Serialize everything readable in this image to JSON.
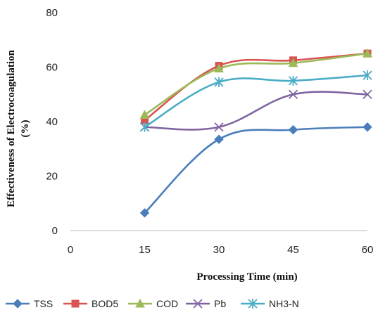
{
  "chart_data": {
    "type": "line",
    "x": [
      15,
      30,
      45,
      60
    ],
    "series": [
      {
        "name": "TSS",
        "values": [
          6.5,
          33.5,
          37,
          38
        ],
        "color": "#4a7ebb",
        "marker": "diamond"
      },
      {
        "name": "BOD5",
        "values": [
          40.5,
          60.5,
          62.5,
          65
        ],
        "color": "#d9534f",
        "marker": "square"
      },
      {
        "name": "COD",
        "values": [
          42.5,
          59.5,
          61.5,
          65
        ],
        "color": "#9bbb59",
        "marker": "triangle"
      },
      {
        "name": "Pb",
        "values": [
          38,
          38,
          50,
          50
        ],
        "color": "#8064a2",
        "marker": "x"
      },
      {
        "name": "NH3-N",
        "values": [
          38,
          54.5,
          55,
          57
        ],
        "color": "#4bacc6",
        "marker": "asterisk"
      }
    ],
    "xlabel": "Processing Time (min)",
    "ylabel": [
      "Effectiveness of Electrocoagulation",
      "(%)"
    ],
    "xticks": [
      "0",
      "15",
      "30",
      "45",
      "60"
    ],
    "yticks": [
      "0",
      "20",
      "40",
      "60",
      "80"
    ],
    "xlim": [
      0,
      60
    ],
    "ylim": [
      0,
      80
    ],
    "grid": false,
    "legend_position": "bottom",
    "smooth": true
  }
}
